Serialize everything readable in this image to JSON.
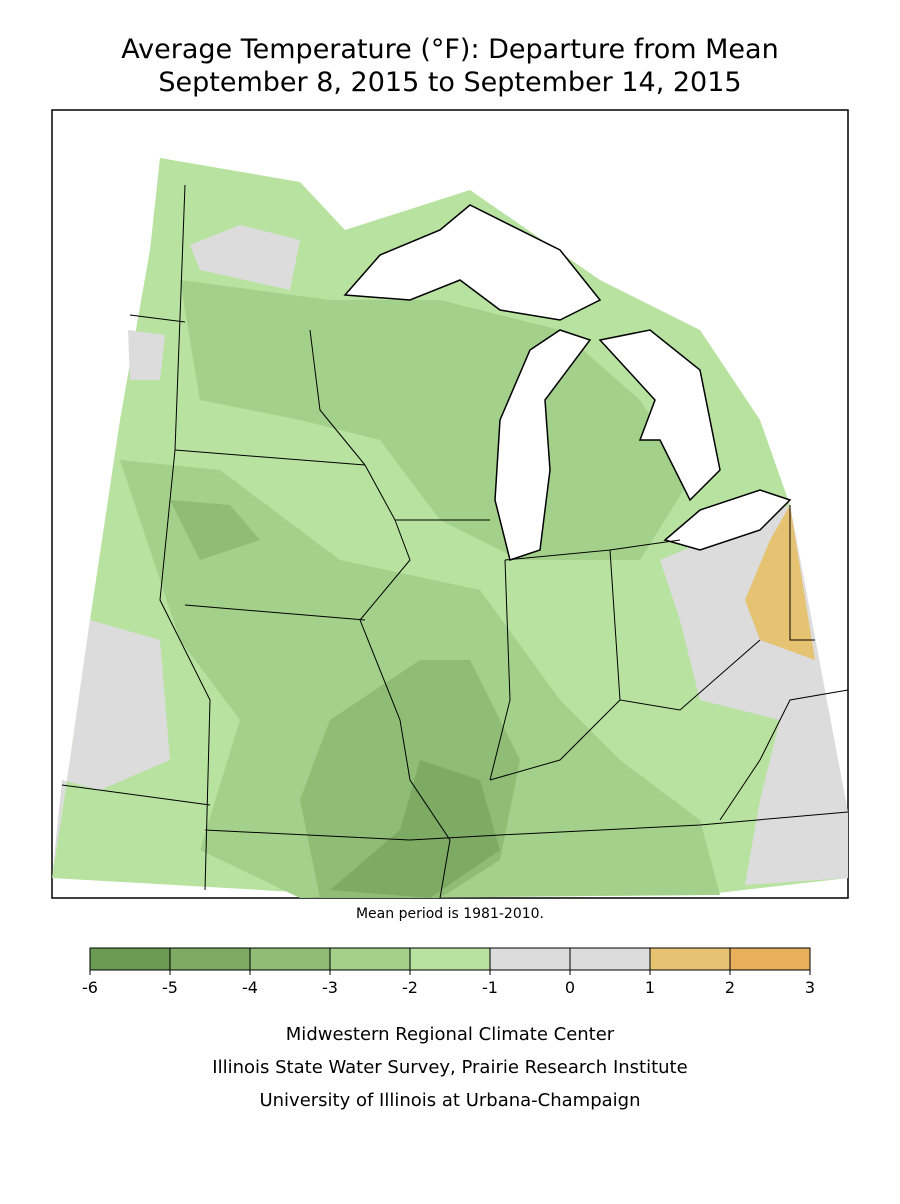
{
  "title": [
    "Average Temperature (°F): Departure from Mean",
    "September 8, 2015 to September 14, 2015"
  ],
  "note": "Mean period is 1981-2010.",
  "legend": {
    "ticks": [
      -6,
      -5,
      -4,
      -3,
      -2,
      -1,
      0,
      1,
      2,
      3
    ],
    "colors": [
      "#6b9a55",
      "#7dab64",
      "#8fbd75",
      "#a3d08a",
      "#b8e2a0",
      "#dcdcdc",
      "#dcdcdc",
      "#e6c373",
      "#e8b05a"
    ]
  },
  "credits": [
    "Midwestern Regional Climate Center",
    "Illinois State Water Survey, Prairie Research Institute",
    "University of Illinois at Urbana-Champaign"
  ]
}
